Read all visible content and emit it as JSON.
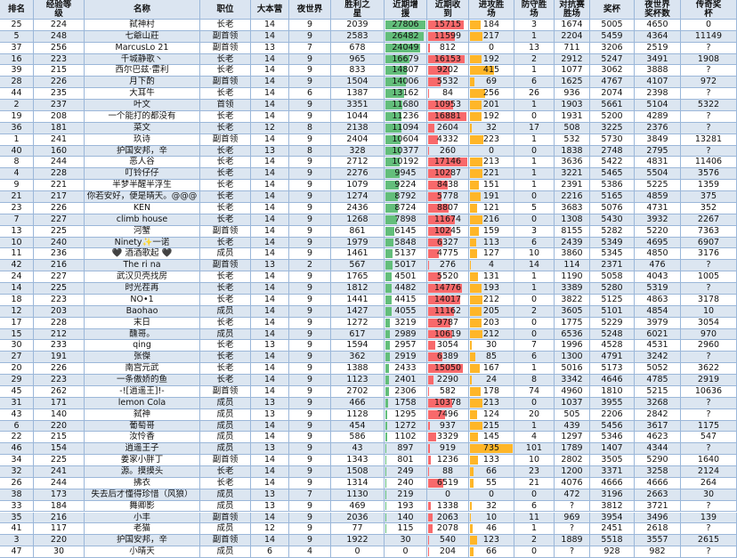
{
  "table": {
    "columns": [
      "排名",
      "经验等级",
      "名称",
      "职位",
      "大本营",
      "夜世界",
      "胜利之星",
      "近期增援",
      "近期收到",
      "进攻胜场",
      "防守胜场",
      "对抗赛胜场",
      "奖杯",
      "夜世界奖杯数",
      "传奇奖杯"
    ],
    "rows": [
      [
        25,
        224,
        "弑神村",
        "长老",
        14,
        9,
        2039,
        27806,
        15715,
        184,
        3,
        1674,
        5005,
        4650,
        0
      ],
      [
        5,
        248,
        "七爺山莊",
        "副首领",
        14,
        9,
        2583,
        26482,
        11599,
        217,
        1,
        2204,
        5459,
        4364,
        11149
      ],
      [
        37,
        256,
        "MarcusLo 21",
        "副首领",
        13,
        7,
        678,
        24049,
        812,
        0,
        13,
        711,
        3206,
        2519,
        "?"
      ],
      [
        16,
        223,
        "千城静歌丶",
        "长老",
        14,
        9,
        965,
        16679,
        16153,
        192,
        2,
        2912,
        5247,
        3491,
        1908
      ],
      [
        39,
        215,
        "西尔巴兹·雷利",
        "长老",
        14,
        9,
        833,
        14807,
        9202,
        415,
        1,
        1077,
        3062,
        3888,
        "?"
      ],
      [
        28,
        226,
        "月下酌",
        "副首领",
        14,
        9,
        1504,
        14006,
        5532,
        69,
        6,
        1625,
        4767,
        4107,
        972
      ],
      [
        44,
        235,
        "大耳牛",
        "长老",
        14,
        6,
        1387,
        13162,
        84,
        256,
        26,
        936,
        2074,
        2398,
        "?"
      ],
      [
        2,
        237,
        "叶文",
        "首领",
        14,
        9,
        3351,
        11680,
        10953,
        201,
        1,
        1903,
        5661,
        5104,
        5322
      ],
      [
        19,
        208,
        "一个能打的都没有",
        "长老",
        14,
        9,
        1044,
        11236,
        16881,
        192,
        0,
        1931,
        5200,
        4289,
        "?"
      ],
      [
        36,
        181,
        "菜文",
        "长老",
        12,
        8,
        2138,
        11094,
        2604,
        32,
        17,
        508,
        3225,
        2376,
        "?"
      ],
      [
        1,
        241,
        "玖诗",
        "副首领",
        14,
        9,
        2404,
        10604,
        4332,
        223,
        1,
        532,
        5730,
        3849,
        13281
      ],
      [
        40,
        160,
        "护国安邦，辛",
        "长老",
        13,
        8,
        328,
        10377,
        260,
        0,
        0,
        1838,
        2748,
        2795,
        "?"
      ],
      [
        8,
        244,
        "恶人谷",
        "长老",
        14,
        9,
        2712,
        10192,
        17146,
        213,
        1,
        3636,
        5422,
        4831,
        11406
      ],
      [
        4,
        228,
        "叮铃仔仔",
        "长老",
        14,
        9,
        2276,
        9945,
        10287,
        221,
        1,
        3221,
        5465,
        5504,
        3576
      ],
      [
        9,
        221,
        "半梦半醒半浮生",
        "长老",
        14,
        9,
        1079,
        9224,
        8438,
        151,
        1,
        2391,
        5386,
        5225,
        1359
      ],
      [
        21,
        217,
        "你若安好，便是晴天。@@@",
        "长老",
        14,
        9,
        1274,
        8792,
        5778,
        191,
        0,
        2216,
        5165,
        4859,
        375
      ],
      [
        23,
        226,
        "KEN",
        "长老",
        14,
        9,
        2436,
        8724,
        8807,
        121,
        5,
        3683,
        5076,
        4731,
        352
      ],
      [
        7,
        227,
        "climb house",
        "长老",
        14,
        9,
        1268,
        7898,
        11674,
        216,
        0,
        1308,
        5430,
        3932,
        2267
      ],
      [
        13,
        225,
        "河蟹",
        "副首领",
        14,
        9,
        861,
        6145,
        10245,
        159,
        3,
        8155,
        5282,
        5220,
        7363
      ],
      [
        10,
        240,
        "Ninety✨一诺",
        "长老",
        14,
        9,
        1979,
        5848,
        6327,
        113,
        6,
        2439,
        5349,
        4695,
        6907
      ],
      [
        11,
        236,
        "🖤 酒酒歌起 🖤",
        "成员",
        14,
        9,
        1461,
        5137,
        4775,
        127,
        10,
        3860,
        5345,
        4850,
        3176
      ],
      [
        42,
        216,
        "The ri na",
        "副首领",
        13,
        2,
        567,
        5017,
        276,
        4,
        14,
        114,
        2371,
        476,
        "?"
      ],
      [
        24,
        227,
        "武汉贝壳找房",
        "长老",
        14,
        9,
        1765,
        4501,
        5520,
        131,
        1,
        1190,
        5058,
        4043,
        1005
      ],
      [
        14,
        225,
        "时光茬再",
        "长老",
        14,
        9,
        1812,
        4482,
        14776,
        193,
        1,
        3389,
        5280,
        5319,
        "?"
      ],
      [
        18,
        223,
        "NO•1",
        "长老",
        14,
        9,
        1441,
        4415,
        14017,
        212,
        0,
        3822,
        5125,
        4863,
        3178
      ],
      [
        12,
        203,
        "Baohao",
        "成员",
        14,
        9,
        1427,
        4055,
        11162,
        205,
        2,
        3605,
        5101,
        4854,
        10
      ],
      [
        17,
        228,
        "末日",
        "长老",
        14,
        9,
        1272,
        3219,
        9787,
        203,
        0,
        1775,
        5229,
        3979,
        3054
      ],
      [
        15,
        212,
        "醺哥。",
        "成员",
        14,
        9,
        617,
        2989,
        10619,
        212,
        0,
        6536,
        5248,
        6021,
        970
      ],
      [
        30,
        233,
        "qing",
        "长老",
        13,
        9,
        1594,
        2957,
        3054,
        30,
        7,
        1996,
        4528,
        4531,
        2960
      ],
      [
        27,
        191,
        "张傑",
        "长老",
        14,
        9,
        362,
        2919,
        6389,
        85,
        6,
        1300,
        4791,
        3242,
        "?"
      ],
      [
        20,
        226,
        "南宫元武",
        "长老",
        14,
        9,
        1388,
        2433,
        15050,
        167,
        1,
        5016,
        5173,
        5052,
        3622
      ],
      [
        29,
        223,
        "一条傲娇的鱼",
        "长老",
        14,
        9,
        1123,
        2401,
        2290,
        24,
        8,
        3342,
        4646,
        4785,
        2919
      ],
      [
        45,
        262,
        "-![逍遥王]!-",
        "副首领",
        14,
        9,
        2702,
        2306,
        582,
        178,
        74,
        4960,
        1810,
        5215,
        10636
      ],
      [
        31,
        171,
        "lemon Cola",
        "成员",
        13,
        9,
        466,
        1758,
        10378,
        213,
        0,
        1037,
        3955,
        3268,
        "?"
      ],
      [
        43,
        140,
        "弑神",
        "成员",
        13,
        9,
        1128,
        1295,
        7496,
        124,
        20,
        505,
        2206,
        2842,
        "?"
      ],
      [
        6,
        220,
        "葡萄哥",
        "成员",
        14,
        9,
        454,
        1272,
        937,
        215,
        1,
        439,
        5456,
        3617,
        1175
      ],
      [
        22,
        215,
        "汝怜香",
        "成员",
        14,
        9,
        586,
        1102,
        3329,
        145,
        4,
        1297,
        5346,
        4623,
        547
      ],
      [
        46,
        154,
        "逍遥王子",
        "成员",
        13,
        9,
        43,
        897,
        919,
        735,
        101,
        1789,
        1407,
        4344,
        "?"
      ],
      [
        34,
        225,
        "姜家小胖丁",
        "副首领",
        14,
        9,
        1343,
        801,
        1236,
        133,
        10,
        2802,
        3505,
        5290,
        1640
      ],
      [
        32,
        241,
        "源。摸摸头",
        "长老",
        14,
        9,
        1508,
        249,
        88,
        66,
        23,
        1200,
        3371,
        3258,
        2124
      ],
      [
        26,
        244,
        "拂衣",
        "长老",
        14,
        9,
        1314,
        240,
        6519,
        55,
        21,
        4076,
        4666,
        4666,
        264
      ],
      [
        38,
        173,
        "失去后才懂得珍惜（风狼）",
        "成员",
        13,
        7,
        1130,
        219,
        0,
        0,
        0,
        472,
        3196,
        2663,
        30
      ],
      [
        33,
        184,
        "舞卿影",
        "成员",
        13,
        9,
        469,
        193,
        1338,
        32,
        6,
        "?",
        3812,
        3721,
        "?"
      ],
      [
        35,
        216,
        "小丰",
        "副首领",
        14,
        9,
        2036,
        140,
        2063,
        10,
        11,
        969,
        3954,
        3496,
        139
      ],
      [
        41,
        117,
        "老猫",
        "成员",
        12,
        9,
        77,
        115,
        2078,
        46,
        1,
        "?",
        2451,
        2618,
        "?"
      ],
      [
        3,
        220,
        "护国安邦，辛",
        "副首领",
        14,
        9,
        1922,
        30,
        540,
        123,
        2,
        1889,
        5518,
        3557,
        2615
      ],
      [
        47,
        30,
        "小晴天",
        "成员",
        6,
        4,
        0,
        0,
        204,
        66,
        0,
        "?",
        928,
        982,
        "?"
      ]
    ]
  }
}
